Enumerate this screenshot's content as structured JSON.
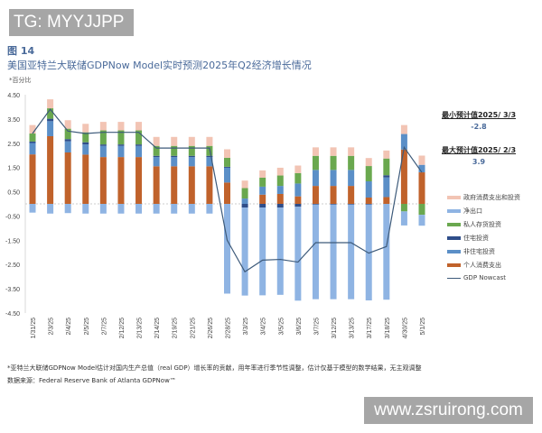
{
  "watermarks": {
    "top": "TG: MYYJJPP",
    "bottom": "www.zsruirong.com"
  },
  "header": {
    "figure": "图 14",
    "title": "美国亚特兰大联储GDPNow Model实时预测2025年Q2经济增长情况",
    "unit": "*百分比"
  },
  "annotations": {
    "min_label": "最小预计值2025/ 3/3",
    "min_value": "-2.8",
    "max_label": "最大预计值2025/ 2/3",
    "max_value": "3.9"
  },
  "notes": [
    "*亚特兰大联储GDPNow Model估计对国内生产总值（real GDP）增长率的贡献，用年率进行季节性调整，估计仅基于模型的数学结果，无主观调整",
    "数据来源：Federal Reserve Bank of Atlanta GDPNow™"
  ],
  "chart_data": {
    "type": "bar",
    "stacked": true,
    "ylim": [
      -4.5,
      4.5
    ],
    "yticks": [
      "4.50",
      "3.50",
      "2.50",
      "1.50",
      "0.50",
      "-0.50",
      "-1.50",
      "-2.50",
      "-3.50",
      "-4.50"
    ],
    "legend_position": "right",
    "categories": [
      "1/31/25",
      "2/3/25",
      "2/4/25",
      "2/5/25",
      "2/7/25",
      "2/12/25",
      "2/13/25",
      "2/14/25",
      "2/19/25",
      "2/21/25",
      "2/26/25",
      "2/28/25",
      "3/3/25",
      "3/4/25",
      "3/5/25",
      "3/6/25",
      "3/7/25",
      "3/12/25",
      "3/13/25",
      "3/17/25",
      "3/18/25",
      "4/30/25",
      "5/1/25"
    ],
    "series": [
      {
        "name": "个人消费支出",
        "color": "#c0622b",
        "values": [
          2.04,
          2.79,
          2.12,
          2.03,
          1.93,
          1.93,
          1.93,
          1.55,
          1.55,
          1.55,
          1.55,
          0.88,
          0,
          0.38,
          0.41,
          0.31,
          0.74,
          0.74,
          0.74,
          0.26,
          0.28,
          2.24,
          1.3
        ]
      },
      {
        "name": "非住宅投资",
        "color": "#5b8fc7",
        "values": [
          0.47,
          0.62,
          0.46,
          0.42,
          0.46,
          0.46,
          0.46,
          0.38,
          0.38,
          0.38,
          0.38,
          0.61,
          0.22,
          0.33,
          0.33,
          0.53,
          0.66,
          0.66,
          0.66,
          0.67,
          0.81,
          0.64,
          0.31
        ]
      },
      {
        "name": "住宅投资",
        "color": "#2f4e8a",
        "values": [
          0.06,
          0.1,
          0.09,
          0.09,
          0.06,
          0.06,
          0.06,
          0.05,
          0.05,
          0.05,
          0.05,
          0.04,
          -0.15,
          -0.15,
          -0.15,
          -0.12,
          -0.03,
          -0.03,
          -0.03,
          -0.03,
          0.09,
          0,
          0
        ]
      },
      {
        "name": "私人存货投资",
        "color": "#6aa84f",
        "values": [
          0.33,
          0.43,
          0.43,
          0.41,
          0.58,
          0.58,
          0.58,
          0.41,
          0.41,
          0.41,
          0.41,
          0.37,
          0.43,
          0.37,
          0.43,
          0.43,
          0.58,
          0.58,
          0.58,
          0.63,
          0.69,
          -0.31,
          -0.45
        ]
      },
      {
        "name": "政府消费支出和投资",
        "color": "#f2c4b4",
        "values": [
          0.35,
          0.37,
          0.35,
          0.35,
          0.35,
          0.35,
          0.35,
          0.37,
          0.37,
          0.37,
          0.37,
          0.35,
          0.31,
          0.3,
          0.32,
          0.31,
          0.35,
          0.35,
          0.35,
          0.33,
          0.33,
          0.37,
          0.38
        ]
      },
      {
        "name": "净出口",
        "color": "#8fb4e3",
        "values": [
          -0.36,
          -0.4,
          -0.38,
          -0.4,
          -0.4,
          -0.4,
          -0.4,
          -0.4,
          -0.4,
          -0.4,
          -0.4,
          -3.7,
          -3.63,
          -3.62,
          -3.6,
          -3.87,
          -3.9,
          -3.9,
          -3.9,
          -3.95,
          -3.95,
          -0.58,
          -0.45
        ]
      }
    ],
    "line": {
      "name": "GDP Nowcast",
      "color": "#3d5a7a",
      "values": [
        2.9,
        3.9,
        3.0,
        2.9,
        2.95,
        2.95,
        2.95,
        2.3,
        2.3,
        2.3,
        2.3,
        -1.5,
        -2.8,
        -2.32,
        -2.29,
        -2.4,
        -1.6,
        -1.6,
        -1.6,
        -2.03,
        -1.76,
        2.33,
        1.3
      ]
    },
    "legend_order": [
      4,
      5,
      3,
      2,
      1,
      0
    ]
  }
}
